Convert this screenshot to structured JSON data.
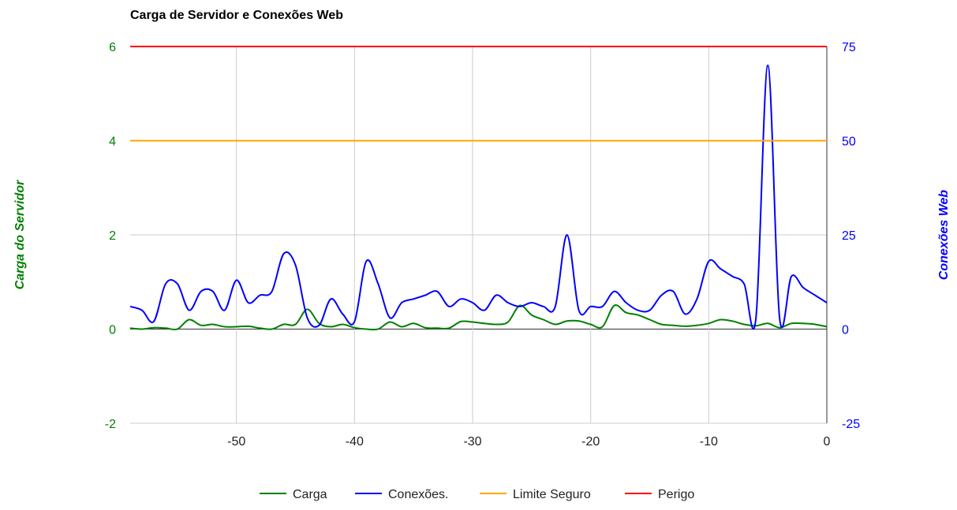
{
  "chart_data": {
    "type": "line",
    "title": "Carga de Servidor e Conexões Web",
    "xlabel": "",
    "ylabel_left": "Carga do Servidor",
    "ylabel_right": "Conexões Web",
    "xlim": [
      -59,
      0
    ],
    "ylim_left": [
      -2,
      6
    ],
    "ylim_right": [
      -25,
      75
    ],
    "x_ticks": [
      -50,
      -40,
      -30,
      -20,
      -10,
      0
    ],
    "y_ticks_left": [
      6,
      4,
      2,
      0,
      -2
    ],
    "y_ticks_right": [
      75,
      50,
      25,
      0,
      -25
    ],
    "grid": true,
    "legend_position": "bottom",
    "colors": {
      "carga": "#008000",
      "conexoes": "#0000ff",
      "limite": "#ffa500",
      "perigo": "#ff0000",
      "left_axis_text": "#008000",
      "right_axis_text": "#0000ff",
      "grid": "#cccccc"
    },
    "x": [
      -59,
      -58,
      -57,
      -56,
      -55,
      -54,
      -53,
      -52,
      -51,
      -50,
      -49,
      -48,
      -47,
      -46,
      -45,
      -44,
      -43,
      -42,
      -41,
      -40,
      -39,
      -38,
      -37,
      -36,
      -35,
      -34,
      -33,
      -32,
      -31,
      -30,
      -29,
      -28,
      -27,
      -26,
      -25,
      -24,
      -23,
      -22,
      -21,
      -20,
      -19,
      -18,
      -17,
      -16,
      -15,
      -14,
      -13,
      -12,
      -11,
      -10,
      -9,
      -8,
      -7,
      -6,
      -5,
      -4,
      -3,
      -2,
      -1,
      0
    ],
    "series": [
      {
        "name": "Carga",
        "axis": "left",
        "values": [
          0.02,
          0.0,
          0.03,
          0.02,
          0.0,
          0.2,
          0.08,
          0.1,
          0.05,
          0.05,
          0.06,
          0.02,
          0.0,
          0.1,
          0.1,
          0.42,
          0.12,
          0.05,
          0.1,
          0.03,
          0.0,
          0.0,
          0.15,
          0.05,
          0.12,
          0.03,
          0.02,
          0.02,
          0.16,
          0.15,
          0.12,
          0.1,
          0.15,
          0.5,
          0.3,
          0.2,
          0.1,
          0.17,
          0.17,
          0.1,
          0.05,
          0.5,
          0.35,
          0.3,
          0.2,
          0.1,
          0.08,
          0.06,
          0.08,
          0.12,
          0.2,
          0.17,
          0.1,
          0.07,
          0.12,
          0.03,
          0.12,
          0.12,
          0.1,
          0.05
        ]
      },
      {
        "name": "Conexões.",
        "axis": "right",
        "values": [
          6,
          5,
          2,
          12,
          12,
          5,
          10,
          10,
          5,
          13,
          7,
          9,
          10,
          20,
          17,
          3,
          1,
          8,
          4,
          2,
          18,
          12,
          3,
          7,
          8,
          9,
          10,
          6,
          8,
          7,
          5,
          9,
          7,
          6,
          7,
          6,
          6,
          25,
          5,
          6,
          6,
          10,
          7,
          5,
          5,
          9,
          10,
          4,
          8,
          18,
          16,
          14,
          12,
          3,
          70,
          3,
          14,
          11,
          9,
          7
        ]
      },
      {
        "name": "Limite Seguro",
        "axis": "left",
        "constant": 4
      },
      {
        "name": "Perigo",
        "axis": "left",
        "constant": 6
      }
    ]
  }
}
